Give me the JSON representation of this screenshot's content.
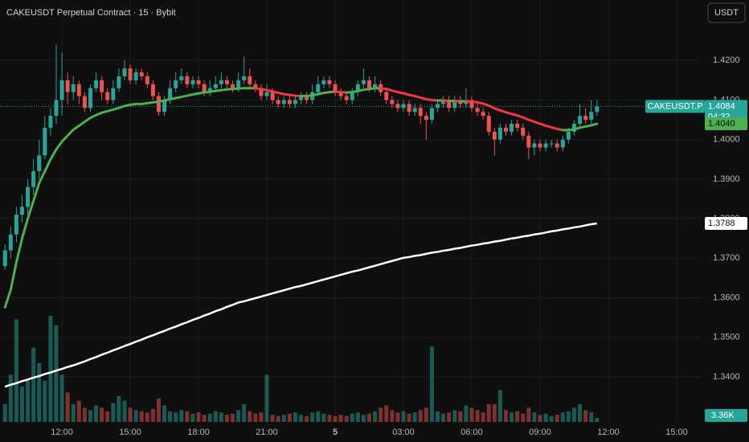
{
  "chart_data": {
    "type": "candlestick",
    "title": "CAKEUSDT Perpetual Contract · 15 · Bybit",
    "currency_button": "USDT",
    "symbol_label": "CAKEUSDT.P",
    "countdown": "04:32",
    "up_color": "#26a69a",
    "down_color": "#ef5350",
    "grid": true,
    "x": [
      9.5,
      9.75,
      10,
      10.25,
      10.5,
      10.75,
      11,
      11.25,
      11.5,
      11.75,
      12,
      12.25,
      12.5,
      12.75,
      13,
      13.25,
      13.5,
      13.75,
      14,
      14.25,
      14.5,
      14.75,
      15,
      15.25,
      15.5,
      15.75,
      16,
      16.25,
      16.5,
      16.75,
      17,
      17.25,
      17.5,
      17.75,
      18,
      18.25,
      18.5,
      18.75,
      19,
      19.25,
      19.5,
      19.75,
      20,
      20.25,
      20.5,
      20.75,
      21,
      21.25,
      21.5,
      21.75,
      22,
      22.25,
      22.5,
      22.75,
      23,
      23.25,
      23.5,
      23.75,
      24,
      24.25,
      24.5,
      24.75,
      25,
      25.25,
      25.5,
      25.75,
      26,
      26.25,
      26.5,
      26.75,
      27,
      27.25,
      27.5,
      27.75,
      28,
      28.25,
      28.5,
      28.75,
      29,
      29.25,
      29.5,
      29.75,
      30,
      30.25,
      30.5,
      30.75,
      31,
      31.25,
      31.5,
      31.75,
      32,
      32.25,
      32.5,
      32.75,
      33,
      33.25,
      33.5,
      33.75,
      34,
      34.25,
      34.5,
      34.75,
      35,
      35.25,
      35.5
    ],
    "open": [
      1.368,
      1.372,
      1.376,
      1.381,
      1.383,
      1.388,
      1.392,
      1.396,
      1.403,
      1.406,
      1.41,
      1.415,
      1.412,
      1.414,
      1.411,
      1.408,
      1.413,
      1.415,
      1.412,
      1.41,
      1.413,
      1.416,
      1.418,
      1.415,
      1.417,
      1.416,
      1.414,
      1.411,
      1.407,
      1.41,
      1.413,
      1.415,
      1.416,
      1.414,
      1.415,
      1.414,
      1.412,
      1.413,
      1.414,
      1.415,
      1.414,
      1.413,
      1.415,
      1.416,
      1.414,
      1.413,
      1.411,
      1.412,
      1.41,
      1.409,
      1.41,
      1.409,
      1.41,
      1.411,
      1.41,
      1.412,
      1.414,
      1.415,
      1.414,
      1.412,
      1.411,
      1.41,
      1.412,
      1.414,
      1.415,
      1.413,
      1.414,
      1.412,
      1.41,
      1.409,
      1.408,
      1.409,
      1.407,
      1.408,
      1.406,
      1.405,
      1.408,
      1.409,
      1.41,
      1.408,
      1.41,
      1.409,
      1.41,
      1.408,
      1.407,
      1.406,
      1.402,
      1.4,
      1.403,
      1.402,
      1.404,
      1.403,
      1.401,
      1.398,
      1.399,
      1.398,
      1.399,
      1.399,
      1.398,
      1.4,
      1.402,
      1.404,
      1.406,
      1.405,
      1.407
    ],
    "high": [
      1.3735,
      1.378,
      1.383,
      1.386,
      1.39,
      1.395,
      1.4,
      1.406,
      1.408,
      1.424,
      1.422,
      1.417,
      1.416,
      1.415,
      1.412,
      1.414,
      1.417,
      1.416,
      1.413,
      1.415,
      1.418,
      1.42,
      1.419,
      1.418,
      1.418,
      1.417,
      1.415,
      1.412,
      1.411,
      1.415,
      1.417,
      1.418,
      1.417,
      1.416,
      1.416,
      1.415,
      1.415,
      1.416,
      1.417,
      1.416,
      1.415,
      1.417,
      1.421,
      1.418,
      1.415,
      1.414,
      1.414,
      1.413,
      1.411,
      1.411,
      1.411,
      1.411,
      1.412,
      1.412,
      1.414,
      1.416,
      1.416,
      1.416,
      1.415,
      1.413,
      1.412,
      1.413,
      1.415,
      1.418,
      1.416,
      1.416,
      1.415,
      1.413,
      1.411,
      1.41,
      1.41,
      1.41,
      1.409,
      1.409,
      1.407,
      1.409,
      1.41,
      1.411,
      1.411,
      1.411,
      1.411,
      1.413,
      1.411,
      1.409,
      1.408,
      1.407,
      1.403,
      1.404,
      1.404,
      1.405,
      1.405,
      1.404,
      1.402,
      1.4,
      1.4,
      1.4,
      1.4,
      1.4,
      1.401,
      1.403,
      1.405,
      1.409,
      1.408,
      1.41,
      1.41
    ],
    "low": [
      1.367,
      1.37,
      1.374,
      1.379,
      1.381,
      1.386,
      1.39,
      1.395,
      1.401,
      1.404,
      1.406,
      1.409,
      1.41,
      1.409,
      1.407,
      1.407,
      1.412,
      1.41,
      1.409,
      1.409,
      1.412,
      1.415,
      1.414,
      1.414,
      1.415,
      1.413,
      1.41,
      1.406,
      1.406,
      1.409,
      1.412,
      1.414,
      1.413,
      1.413,
      1.413,
      1.411,
      1.411,
      1.412,
      1.413,
      1.413,
      1.412,
      1.412,
      1.414,
      1.413,
      1.412,
      1.41,
      1.41,
      1.409,
      1.408,
      1.408,
      1.408,
      1.408,
      1.409,
      1.409,
      1.409,
      1.411,
      1.413,
      1.413,
      1.411,
      1.41,
      1.409,
      1.409,
      1.411,
      1.413,
      1.412,
      1.412,
      1.411,
      1.409,
      1.408,
      1.407,
      1.407,
      1.406,
      1.406,
      1.404,
      1.4,
      1.404,
      1.407,
      1.408,
      1.407,
      1.407,
      1.408,
      1.408,
      1.407,
      1.406,
      1.405,
      1.401,
      1.396,
      1.399,
      1.401,
      1.401,
      1.402,
      1.4,
      1.395,
      1.396,
      1.397,
      1.397,
      1.398,
      1.397,
      1.397,
      1.399,
      1.401,
      1.403,
      1.404,
      1.404,
      1.406
    ],
    "close": [
      1.372,
      1.376,
      1.381,
      1.383,
      1.388,
      1.392,
      1.396,
      1.403,
      1.406,
      1.41,
      1.415,
      1.412,
      1.414,
      1.411,
      1.408,
      1.413,
      1.415,
      1.412,
      1.41,
      1.413,
      1.416,
      1.418,
      1.415,
      1.417,
      1.416,
      1.414,
      1.411,
      1.407,
      1.41,
      1.413,
      1.415,
      1.416,
      1.414,
      1.415,
      1.414,
      1.412,
      1.413,
      1.414,
      1.415,
      1.414,
      1.413,
      1.415,
      1.416,
      1.414,
      1.413,
      1.411,
      1.412,
      1.41,
      1.409,
      1.41,
      1.409,
      1.41,
      1.411,
      1.41,
      1.412,
      1.414,
      1.415,
      1.414,
      1.412,
      1.411,
      1.41,
      1.412,
      1.414,
      1.415,
      1.413,
      1.414,
      1.412,
      1.41,
      1.409,
      1.408,
      1.409,
      1.407,
      1.408,
      1.406,
      1.405,
      1.408,
      1.409,
      1.41,
      1.408,
      1.41,
      1.409,
      1.41,
      1.408,
      1.407,
      1.406,
      1.402,
      1.4,
      1.403,
      1.402,
      1.404,
      1.403,
      1.401,
      1.398,
      1.399,
      1.398,
      1.399,
      1.399,
      1.398,
      1.4,
      1.402,
      1.404,
      1.406,
      1.405,
      1.407,
      1.4084
    ],
    "volume": [
      15000,
      40000,
      87000,
      30000,
      35000,
      63000,
      50000,
      35000,
      90000,
      82000,
      40000,
      25000,
      15000,
      18000,
      12000,
      10000,
      14000,
      12000,
      9000,
      16000,
      22000,
      18000,
      12000,
      10000,
      9000,
      8000,
      11000,
      20000,
      14000,
      9000,
      8000,
      10000,
      9000,
      7000,
      8000,
      6000,
      7000,
      9000,
      8000,
      6000,
      7000,
      10000,
      15000,
      9000,
      7000,
      8000,
      40000,
      6000,
      5000,
      6000,
      7000,
      8000,
      6000,
      5000,
      8000,
      9000,
      7000,
      6000,
      5000,
      6000,
      5000,
      7000,
      8000,
      6000,
      7000,
      9000,
      12000,
      14000,
      10000,
      8000,
      9000,
      7000,
      8000,
      10000,
      12000,
      64000,
      9000,
      7000,
      8000,
      10000,
      9000,
      14000,
      12000,
      10000,
      8000,
      15000,
      15000,
      27000,
      10000,
      8000,
      9000,
      7000,
      12000,
      8000,
      6000,
      7000,
      5000,
      6000,
      8000,
      9000,
      12000,
      15000,
      10000,
      8000,
      3360
    ],
    "fast_ma": {
      "up_color": "#4caf50",
      "down_color": "#f23645",
      "values": [
        1.3576,
        1.362,
        1.369,
        1.375,
        1.38,
        1.3845,
        1.389,
        1.392,
        1.395,
        1.3975,
        1.3995,
        1.401,
        1.4025,
        1.4035,
        1.4045,
        1.4055,
        1.4062,
        1.4068,
        1.4072,
        1.4076,
        1.408,
        1.4085,
        1.4088,
        1.409,
        1.409,
        1.4092,
        1.4094,
        1.4096,
        1.4099,
        1.4102,
        1.4105,
        1.4108,
        1.4111,
        1.4114,
        1.4117,
        1.4119,
        1.4121,
        1.4123,
        1.4125,
        1.4127,
        1.4128,
        1.4129,
        1.413,
        1.413,
        1.413,
        1.4128,
        1.4125,
        1.4122,
        1.4118,
        1.4115,
        1.4113,
        1.4111,
        1.411,
        1.411,
        1.4112,
        1.4115,
        1.4118,
        1.412,
        1.4121,
        1.412,
        1.4119,
        1.412,
        1.4123,
        1.4126,
        1.4128,
        1.413,
        1.413,
        1.4128,
        1.4124,
        1.412,
        1.4117,
        1.4113,
        1.411,
        1.4106,
        1.4102,
        1.41,
        1.4099,
        1.4099,
        1.4098,
        1.4098,
        1.4097,
        1.4097,
        1.4096,
        1.4094,
        1.4091,
        1.4086,
        1.4079,
        1.4074,
        1.4069,
        1.4065,
        1.4061,
        1.4056,
        1.405,
        1.4045,
        1.404,
        1.4035,
        1.4031,
        1.4027,
        1.4024,
        1.4024,
        1.4026,
        1.403,
        1.4033,
        1.4036,
        1.404
      ]
    },
    "slow_ma": {
      "color": "#ffffff",
      "values": [
        1.3375,
        1.338,
        1.3384,
        1.3389,
        1.3393,
        1.3398,
        1.3402,
        1.3407,
        1.3411,
        1.3416,
        1.342,
        1.3425,
        1.3429,
        1.3434,
        1.3439,
        1.3445,
        1.345,
        1.3456,
        1.3461,
        1.3467,
        1.3472,
        1.3478,
        1.3483,
        1.3489,
        1.3494,
        1.35,
        1.3505,
        1.3511,
        1.3516,
        1.3522,
        1.3527,
        1.3533,
        1.3538,
        1.3544,
        1.3549,
        1.3555,
        1.356,
        1.3566,
        1.3571,
        1.3577,
        1.3582,
        1.3588,
        1.3591,
        1.3595,
        1.3599,
        1.3603,
        1.3607,
        1.3611,
        1.3615,
        1.3619,
        1.3623,
        1.3627,
        1.363,
        1.3634,
        1.3638,
        1.3642,
        1.3646,
        1.365,
        1.3654,
        1.3658,
        1.3662,
        1.3666,
        1.3669,
        1.3673,
        1.3677,
        1.3681,
        1.3685,
        1.3689,
        1.3693,
        1.3697,
        1.3701,
        1.3703,
        1.3706,
        1.3708,
        1.3711,
        1.3714,
        1.3716,
        1.3719,
        1.3721,
        1.3724,
        1.3726,
        1.3729,
        1.3732,
        1.3734,
        1.3737,
        1.3739,
        1.3742,
        1.3744,
        1.3747,
        1.375,
        1.3752,
        1.3755,
        1.3757,
        1.376,
        1.3762,
        1.3765,
        1.3768,
        1.377,
        1.3773,
        1.3775,
        1.3778,
        1.378,
        1.3783,
        1.3786,
        1.3788
      ]
    },
    "last_labels": {
      "close": "1.4084",
      "fast_ma": "1.4040",
      "slow_ma": "1.3788",
      "volume": "3.36K"
    },
    "xlim": [
      9.28,
      40.06
    ],
    "xticks": [
      {
        "value": 12,
        "label": "12:00"
      },
      {
        "value": 15,
        "label": "15:00"
      },
      {
        "value": 18,
        "label": "18:00"
      },
      {
        "value": 21,
        "label": "21:00"
      },
      {
        "value": 24,
        "label": "5",
        "bold": true
      },
      {
        "value": 27,
        "label": "03:00"
      },
      {
        "value": 30,
        "label": "06:00"
      },
      {
        "value": 33,
        "label": "09:00"
      },
      {
        "value": 36,
        "label": "12:00"
      },
      {
        "value": 39,
        "label": "15:00"
      }
    ],
    "ylim": [
      1.3286,
      1.4353
    ],
    "yticks": [
      {
        "value": 1.34,
        "label": "1.3400"
      },
      {
        "value": 1.35,
        "label": "1.3500"
      },
      {
        "value": 1.36,
        "label": "1.3600"
      },
      {
        "value": 1.37,
        "label": "1.3700"
      },
      {
        "value": 1.38,
        "label": "1.3800"
      },
      {
        "value": 1.39,
        "label": "1.3900"
      },
      {
        "value": 1.4,
        "label": "1.4000"
      },
      {
        "value": 1.41,
        "label": "1.4100"
      },
      {
        "value": 1.42,
        "label": "1.4200"
      }
    ]
  }
}
